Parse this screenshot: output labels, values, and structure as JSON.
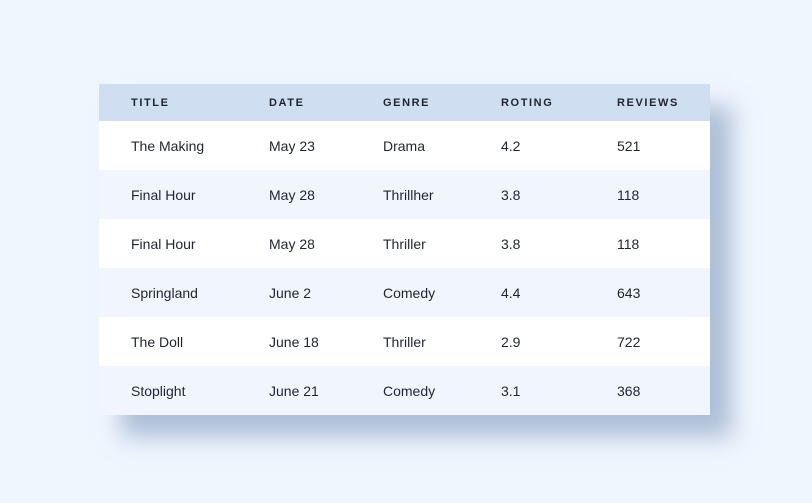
{
  "table": {
    "headers": [
      "TITLE",
      "DATE",
      "GENRE",
      "ROTING",
      "REVIEWS"
    ],
    "rows": [
      [
        "The Making",
        "May 23",
        "Drama",
        "4.2",
        "521"
      ],
      [
        "Final Hour",
        "May 28",
        "Thrillher",
        "3.8",
        "118"
      ],
      [
        "Final Hour",
        "May 28",
        "Thriller",
        "3.8",
        "118"
      ],
      [
        "Springland",
        "June 2",
        "Comedy",
        "4.4",
        "643"
      ],
      [
        "The Doll",
        "June 18",
        "Thriller",
        "2.9",
        "722"
      ],
      [
        "Stoplight",
        "June 21",
        "Comedy",
        "3.1",
        "368"
      ]
    ]
  },
  "colors": {
    "page_background": "#f0f6fe",
    "header_background": "#cfdff1",
    "row_alt_background": "#f1f6fe",
    "row_background": "#ffffff",
    "text": "#1f2430"
  }
}
